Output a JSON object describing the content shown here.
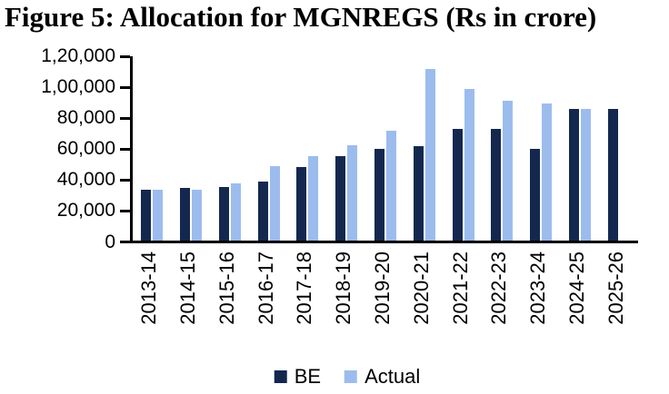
{
  "figure": {
    "title": "Figure 5: Allocation for MGNREGS (Rs in crore)"
  },
  "chart_data": {
    "type": "bar",
    "title": "Figure 5: Allocation for MGNREGS (Rs in crore)",
    "categories": [
      "2013-14",
      "2014-15",
      "2015-16",
      "2016-17",
      "2017-18",
      "2018-19",
      "2019-20",
      "2020-21",
      "2021-22",
      "2022-23",
      "2023-24",
      "2024-25",
      "2025-26"
    ],
    "series": [
      {
        "name": "BE",
        "color": "#14284F",
        "values": [
          33000,
          34000,
          34699,
          38500,
          48000,
          55000,
          60000,
          61500,
          73000,
          73000,
          60000,
          86000,
          86000
        ]
      },
      {
        "name": "Actual",
        "color": "#9CBCEE",
        "values": [
          33000,
          32977,
          37341,
          48215,
          55166,
          61815,
          71687,
          111500,
          98468,
          90806,
          89154,
          86000,
          null
        ]
      }
    ],
    "xlabel": "",
    "ylabel": "",
    "ylim": [
      0,
      120000
    ],
    "ytick_step": 20000,
    "ytick_labels": [
      "0",
      "20,000",
      "40,000",
      "60,000",
      "80,000",
      "1,00,000",
      "1,20,000"
    ],
    "legend_position": "bottom",
    "grid": false,
    "axis_color": "#000000",
    "background_color": "#FFFFFF"
  }
}
